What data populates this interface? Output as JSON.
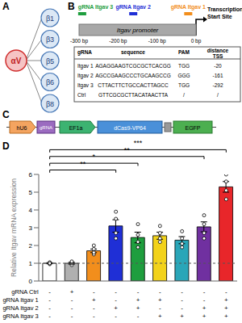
{
  "panels": {
    "A": {
      "label": "A",
      "center": "αV",
      "partners": [
        "β1",
        "β3",
        "β5",
        "β6",
        "β8"
      ]
    },
    "B": {
      "label": "B",
      "guides": [
        {
          "name": "gRNA Itgav 3",
          "color": "#1e9e3e",
          "distance": -292
        },
        {
          "name": "gRNA Itgav 2",
          "color": "#1f2fd6",
          "distance": -161
        },
        {
          "name": "gRNA Itgav 1",
          "color": "#f28e1c",
          "distance": -20
        }
      ],
      "tss_label": "Transcription Start Site",
      "promoter": "Itgav promoter",
      "scale": [
        {
          "value": -300,
          "label": "-300 bp"
        },
        {
          "value": -200,
          "label": "-200 bp"
        },
        {
          "value": -100,
          "label": "-100 bp"
        },
        {
          "value": 0,
          "label": "0 bp"
        }
      ],
      "table": {
        "header": [
          "gRNA",
          "sequence",
          "PAM",
          "distance TSS"
        ],
        "rows": [
          [
            "Itgav 1",
            "AGAGGAAGTCGCGCTCACGG",
            "TGG",
            -20
          ],
          [
            "Itgav 2",
            "AGCCGAAGCCCTGCAAGCCG",
            "GGG",
            -161
          ],
          [
            "Itgav 3",
            "CTTACTTCTGCCACTTAGCC",
            "TGG",
            -292
          ],
          [
            "Ctrl",
            "GTTCGCGCTTACATAACTTA",
            "/",
            "/"
          ]
        ]
      }
    },
    "C": {
      "label": "C",
      "elements": [
        "hU6",
        "gRNA",
        "EF1a",
        "dCas9-VP64",
        "EGFP"
      ]
    }
  },
  "chart_data": {
    "type": "bar",
    "label": "D",
    "ylabel": "Relative Itgav mRNA expression",
    "categories": [
      null,
      null,
      null,
      null,
      null,
      null,
      null,
      null,
      null
    ],
    "values": [
      1.0,
      1.0,
      1.7,
      3.1,
      2.45,
      2.55,
      2.3,
      3.05,
      5.3
    ],
    "errors": [
      0.03,
      0.05,
      0.1,
      0.35,
      0.3,
      0.2,
      0.2,
      0.28,
      0.3
    ],
    "points": [
      [
        0.95,
        1.0,
        1.05,
        1.0
      ],
      [
        0.9,
        1.0,
        1.05,
        1.1
      ],
      [
        1.5,
        1.6,
        1.8,
        2.0
      ],
      [
        2.4,
        2.7,
        3.5,
        3.9
      ],
      [
        1.9,
        2.2,
        2.6,
        3.2
      ],
      [
        2.2,
        2.4,
        2.7,
        3.1
      ],
      [
        1.9,
        2.1,
        2.4,
        2.8
      ],
      [
        2.4,
        2.7,
        3.2,
        3.7
      ],
      [
        4.6,
        5.1,
        5.6,
        6.0
      ]
    ],
    "colors": [
      "#ffffff",
      "#b0b0b0",
      "#f28e1c",
      "#1f2fd6",
      "#1e9e3e",
      "#f2d21a",
      "#2aa6b8",
      "#7030a0",
      "#e8262a"
    ],
    "hline": 1,
    "ylim": [
      0,
      6
    ],
    "yticks": [
      0,
      1,
      2,
      3,
      4,
      5,
      6
    ],
    "annotations": [
      {
        "text": "**",
        "from": 0,
        "to": 3
      },
      {
        "text": "*",
        "from": 0,
        "to": 4
      },
      {
        "text": "**",
        "from": 0,
        "to": 7
      },
      {
        "text": "***",
        "from": 0,
        "to": 8
      }
    ],
    "condition_table": {
      "rows": [
        "gRNA Ctrl",
        "gRNA Itgav 1",
        "gRNA Itgav 2",
        "gRNA Itgav 3"
      ],
      "signs": [
        [
          "-",
          "+",
          "-",
          "-",
          "-",
          "-",
          "-",
          "-",
          "-"
        ],
        [
          "-",
          "-",
          "+",
          "-",
          "+",
          "+",
          "-",
          "-",
          "+"
        ],
        [
          "-",
          "-",
          "-",
          "+",
          "+",
          "-",
          "-",
          "+",
          "+"
        ],
        [
          "-",
          "-",
          "-",
          "-",
          "-",
          "+",
          "+",
          "+",
          "+"
        ]
      ]
    }
  }
}
